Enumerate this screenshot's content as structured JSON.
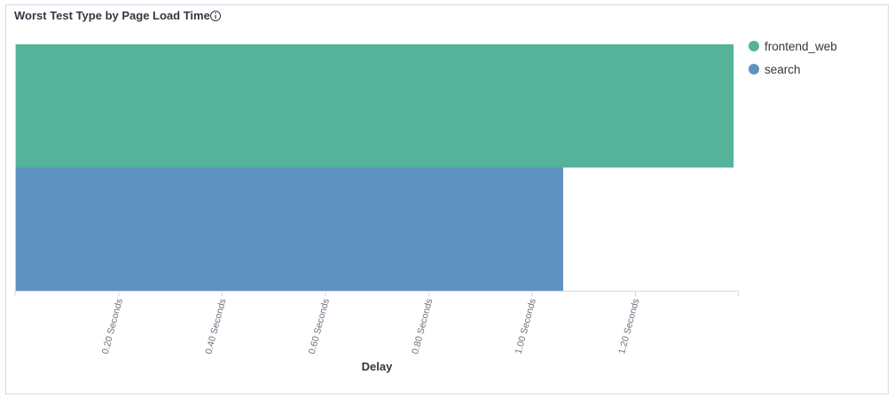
{
  "chart_data": {
    "type": "hbar",
    "title": "Worst Test Type by Page Load Time",
    "xlabel": "Delay",
    "categories": [
      null,
      null
    ],
    "series": [
      {
        "name": "frontend_web",
        "color": "#54b399",
        "values": [
          1.39,
          null
        ]
      },
      {
        "name": "search",
        "color": "#6092c0",
        "values": [
          null,
          1.06
        ]
      }
    ],
    "xlim": [
      0,
      1.4
    ],
    "xticks": [
      {
        "value": 0.2,
        "label": "0.20 Seconds"
      },
      {
        "value": 0.4,
        "label": "0.40 Seconds"
      },
      {
        "value": 0.6,
        "label": "0.60 Seconds"
      },
      {
        "value": 0.8,
        "label": "0.80 Seconds"
      },
      {
        "value": 1.0,
        "label": "1.00 Seconds"
      },
      {
        "value": 1.2,
        "label": "1.20 Seconds"
      }
    ],
    "legend": "top-right"
  }
}
